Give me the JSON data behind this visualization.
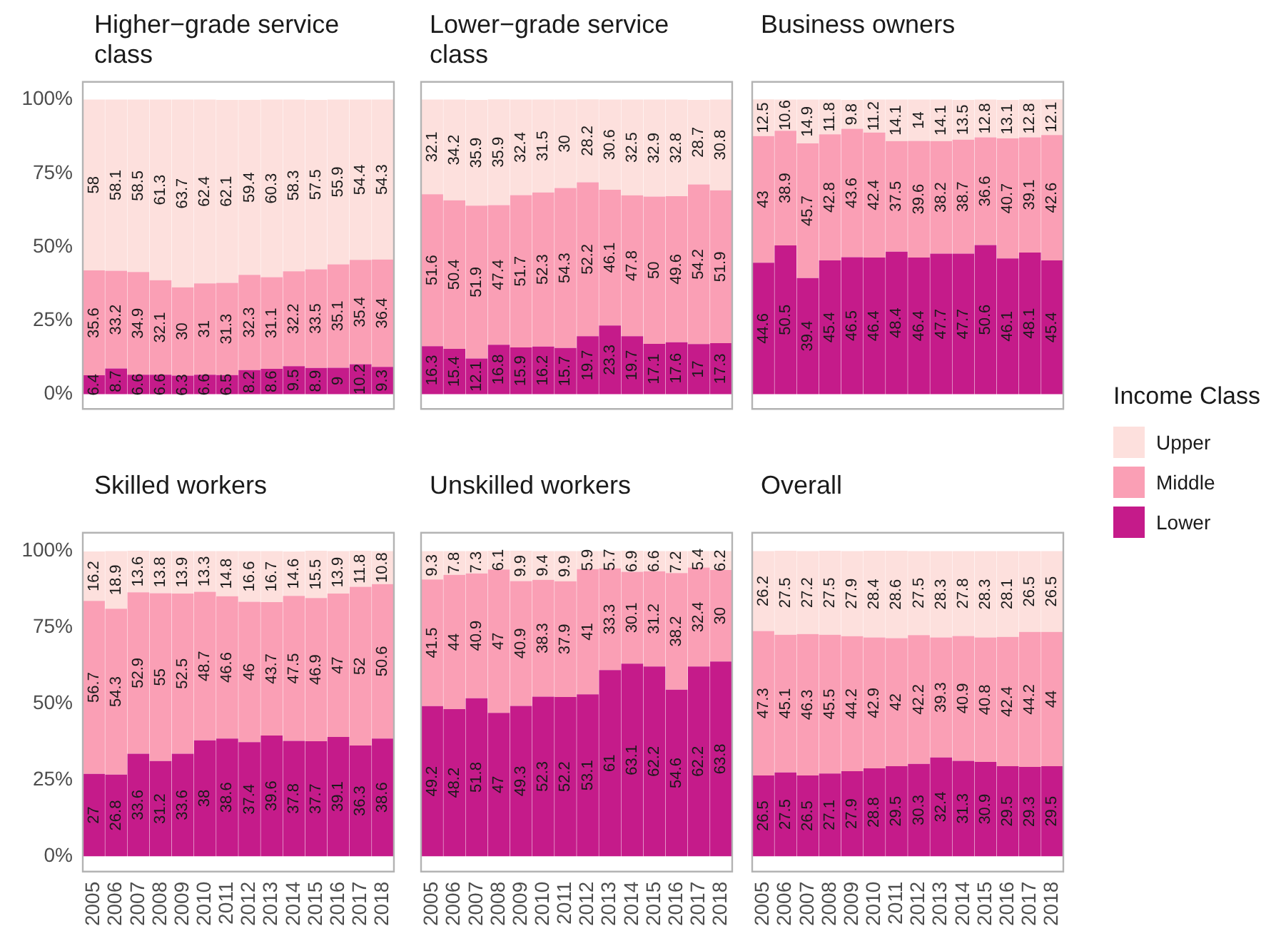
{
  "chart_data": [
    {
      "type": "bar",
      "stacked": true,
      "title": "Higher−grade service class",
      "categories": [
        "2005",
        "2006",
        "2007",
        "2008",
        "2009",
        "2010",
        "2011",
        "2012",
        "2013",
        "2014",
        "2015",
        "2016",
        "2017",
        "2018"
      ],
      "ylim": [
        -5,
        106
      ],
      "yticks": [
        {
          "value": 0,
          "label": "0%"
        },
        {
          "value": 25,
          "label": "25%"
        },
        {
          "value": 50,
          "label": "50%"
        },
        {
          "value": 75,
          "label": "75%"
        },
        {
          "value": 100,
          "label": "100%"
        }
      ],
      "tick_labels": "y",
      "data_labels": true,
      "grid": false,
      "legend": false,
      "series": [
        {
          "color": "#c51b8a",
          "values": [
            6.4,
            8.7,
            6.6,
            6.6,
            6.3,
            6.6,
            6.5,
            8.2,
            8.6,
            9.5,
            8.9,
            9,
            10.2,
            9.3
          ]
        },
        {
          "color": "#fa9fb5",
          "values": [
            35.6,
            33.2,
            34.9,
            32.1,
            30,
            31,
            31.3,
            32.3,
            31.1,
            32.2,
            33.5,
            35.1,
            35.4,
            36.4
          ]
        },
        {
          "color": "#fde0dd",
          "values": [
            58,
            58.1,
            58.5,
            61.3,
            63.7,
            62.4,
            62.1,
            59.4,
            60.3,
            58.3,
            57.5,
            55.9,
            54.4,
            54.3
          ]
        }
      ]
    },
    {
      "type": "bar",
      "stacked": true,
      "title": "Lower−grade service class",
      "categories": [
        "2005",
        "2006",
        "2007",
        "2008",
        "2009",
        "2010",
        "2011",
        "2012",
        "2013",
        "2014",
        "2015",
        "2016",
        "2017",
        "2018"
      ],
      "ylim": [
        -5,
        106
      ],
      "tick_labels": false,
      "data_labels": true,
      "grid": false,
      "legend": false,
      "series": [
        {
          "color": "#c51b8a",
          "values": [
            16.3,
            15.4,
            12.1,
            16.8,
            15.9,
            16.2,
            15.7,
            19.7,
            23.3,
            19.7,
            17.1,
            17.6,
            17,
            17.3
          ]
        },
        {
          "color": "#fa9fb5",
          "values": [
            51.6,
            50.4,
            51.9,
            47.4,
            51.7,
            52.3,
            54.3,
            52.2,
            46.1,
            47.8,
            50,
            49.6,
            54.2,
            51.9
          ]
        },
        {
          "color": "#fde0dd",
          "values": [
            32.1,
            34.2,
            35.9,
            35.9,
            32.4,
            31.5,
            30,
            28.2,
            30.6,
            32.5,
            32.9,
            32.8,
            28.7,
            30.8
          ]
        }
      ]
    },
    {
      "type": "bar",
      "stacked": true,
      "title": "Business owners",
      "categories": [
        "2005",
        "2006",
        "2007",
        "2008",
        "2009",
        "2010",
        "2011",
        "2012",
        "2013",
        "2014",
        "2015",
        "2016",
        "2017",
        "2018"
      ],
      "ylim": [
        -5,
        106
      ],
      "tick_labels": false,
      "data_labels": true,
      "grid": false,
      "legend": "right",
      "legend_title": "Income Class",
      "series": [
        {
          "name": "Lower",
          "color": "#c51b8a",
          "values": [
            44.6,
            50.5,
            39.4,
            45.4,
            46.5,
            46.4,
            48.4,
            46.4,
            47.7,
            47.7,
            50.6,
            46.1,
            48.1,
            45.4
          ]
        },
        {
          "name": "Middle",
          "color": "#fa9fb5",
          "values": [
            43,
            38.9,
            45.7,
            42.8,
            43.6,
            42.4,
            37.5,
            39.6,
            38.2,
            38.7,
            36.6,
            40.7,
            39.1,
            42.6
          ]
        },
        {
          "name": "Upper",
          "color": "#fde0dd",
          "values": [
            12.5,
            10.6,
            14.9,
            11.8,
            9.8,
            11.2,
            14.1,
            14,
            14.1,
            13.5,
            12.8,
            13.1,
            12.8,
            12.1
          ]
        }
      ]
    },
    {
      "type": "bar",
      "stacked": true,
      "title": "Skilled workers",
      "categories": [
        "2005",
        "2006",
        "2007",
        "2008",
        "2009",
        "2010",
        "2011",
        "2012",
        "2013",
        "2014",
        "2015",
        "2016",
        "2017",
        "2018"
      ],
      "ylim": [
        -5,
        106
      ],
      "yticks": [
        {
          "value": 0,
          "label": "0%"
        },
        {
          "value": 25,
          "label": "25%"
        },
        {
          "value": 50,
          "label": "50%"
        },
        {
          "value": 75,
          "label": "75%"
        },
        {
          "value": 100,
          "label": "100%"
        }
      ],
      "data_labels": true,
      "grid": false,
      "legend": false,
      "series": [
        {
          "color": "#c51b8a",
          "values": [
            27,
            26.8,
            33.6,
            31.2,
            33.6,
            38,
            38.6,
            37.4,
            39.6,
            37.8,
            37.7,
            39.1,
            36.3,
            38.6
          ]
        },
        {
          "color": "#fa9fb5",
          "values": [
            56.7,
            54.3,
            52.9,
            55,
            52.5,
            48.7,
            46.6,
            46,
            43.7,
            47.5,
            46.9,
            47,
            52,
            50.6
          ]
        },
        {
          "color": "#fde0dd",
          "values": [
            16.2,
            18.9,
            13.6,
            13.8,
            13.9,
            13.3,
            14.8,
            16.6,
            16.7,
            14.6,
            15.5,
            13.9,
            11.8,
            10.8
          ]
        }
      ]
    },
    {
      "type": "bar",
      "stacked": true,
      "title": "Unskilled workers",
      "categories": [
        "2005",
        "2006",
        "2007",
        "2008",
        "2009",
        "2010",
        "2011",
        "2012",
        "2013",
        "2014",
        "2015",
        "2016",
        "2017",
        "2018"
      ],
      "ylim": [
        -5,
        106
      ],
      "tick_labels": "x",
      "data_labels": true,
      "grid": false,
      "legend": false,
      "series": [
        {
          "color": "#c51b8a",
          "values": [
            49.2,
            48.2,
            51.8,
            47,
            49.3,
            52.3,
            52.2,
            53.1,
            61,
            63.1,
            62.2,
            54.6,
            62.2,
            63.8
          ]
        },
        {
          "color": "#fa9fb5",
          "values": [
            41.5,
            44,
            40.9,
            47,
            40.9,
            38.3,
            37.9,
            41,
            33.3,
            30.1,
            31.2,
            38.2,
            32.4,
            30
          ]
        },
        {
          "color": "#fde0dd",
          "values": [
            9.3,
            7.8,
            7.3,
            6.1,
            9.9,
            9.4,
            9.9,
            5.9,
            5.7,
            6.9,
            6.6,
            7.2,
            5.4,
            6.2
          ]
        }
      ]
    },
    {
      "type": "bar",
      "stacked": true,
      "title": "Overall",
      "categories": [
        "2005",
        "2006",
        "2007",
        "2008",
        "2009",
        "2010",
        "2011",
        "2012",
        "2013",
        "2014",
        "2015",
        "2016",
        "2017",
        "2018"
      ],
      "ylim": [
        -5,
        106
      ],
      "tick_labels": "x",
      "data_labels": true,
      "grid": false,
      "legend": false,
      "series": [
        {
          "color": "#c51b8a",
          "values": [
            26.5,
            27.5,
            26.5,
            27.1,
            27.9,
            28.8,
            29.5,
            30.3,
            32.4,
            31.3,
            30.9,
            29.5,
            29.3,
            29.5
          ]
        },
        {
          "color": "#fa9fb5",
          "values": [
            47.3,
            45.1,
            46.3,
            45.5,
            44.2,
            42.9,
            42,
            42.2,
            39.3,
            40.9,
            40.8,
            42.4,
            44.2,
            44
          ]
        },
        {
          "color": "#fde0dd",
          "values": [
            26.2,
            27.5,
            27.2,
            27.5,
            27.9,
            28.4,
            28.6,
            27.5,
            28.3,
            27.8,
            28.3,
            28.1,
            26.5,
            26.5
          ]
        }
      ]
    }
  ]
}
